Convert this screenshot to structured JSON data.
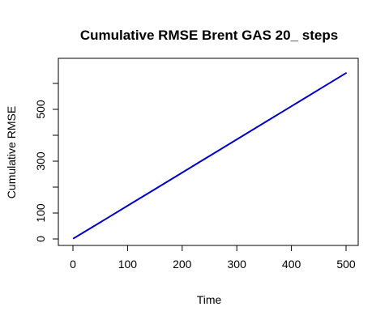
{
  "chart_data": {
    "type": "line",
    "title": "Cumulative RMSE Brent GAS 20_ steps",
    "xlabel": "Time",
    "ylabel": "Cumulative RMSE",
    "xlim": [
      0,
      500
    ],
    "ylim": [
      0,
      600
    ],
    "xticks": [
      0,
      100,
      200,
      300,
      400,
      500
    ],
    "yticks": [
      0,
      100,
      300,
      500
    ],
    "grid": false,
    "series": [
      {
        "color": "#0000CD",
        "x": [
          1,
          50,
          100,
          150,
          200,
          250,
          300,
          350,
          400,
          450,
          500
        ],
        "y": [
          2,
          64,
          128,
          192,
          256,
          320,
          384,
          448,
          512,
          576,
          640
        ]
      }
    ]
  }
}
